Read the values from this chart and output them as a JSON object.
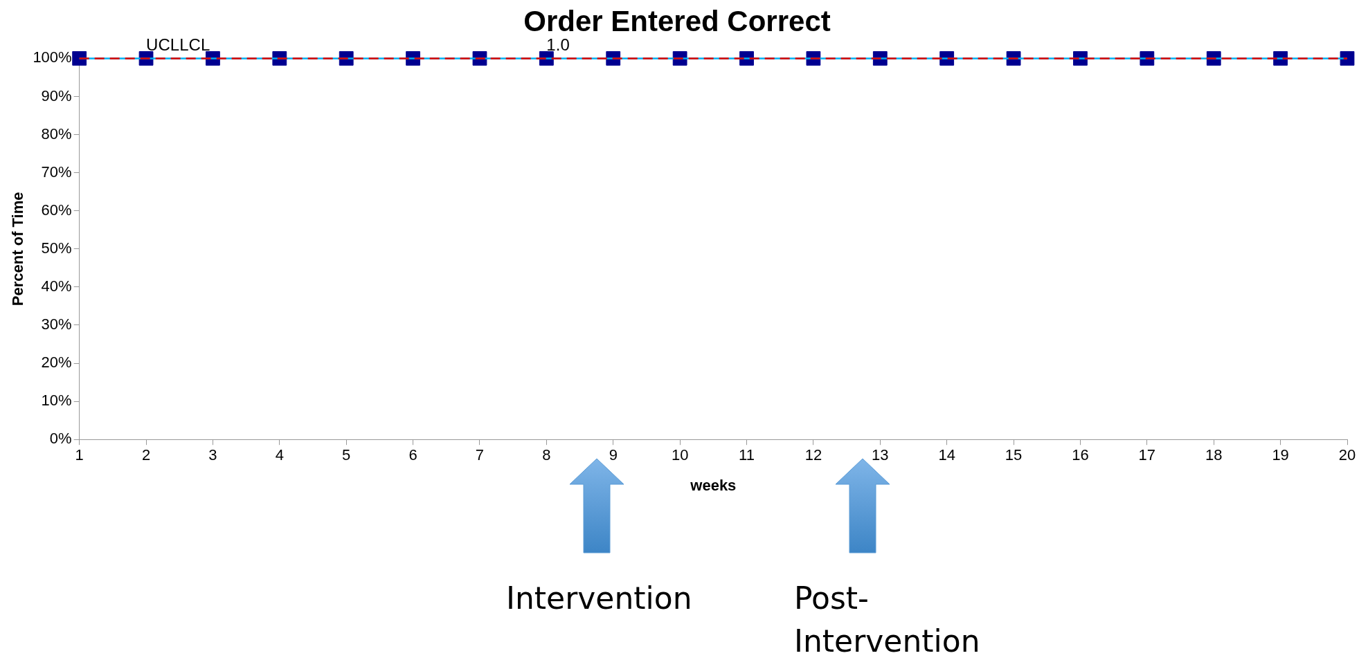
{
  "chart_data": {
    "type": "scatter",
    "title": "Order Entered Correct",
    "xlabel": "weeks",
    "ylabel": "Percent of Time",
    "x": [
      1,
      2,
      3,
      4,
      5,
      6,
      7,
      8,
      9,
      10,
      11,
      12,
      13,
      14,
      15,
      16,
      17,
      18,
      19,
      20
    ],
    "series": [
      {
        "color": "#000090",
        "values": [
          100,
          100,
          100,
          100,
          100,
          100,
          100,
          100,
          100,
          100,
          100,
          100,
          100,
          100,
          100,
          100,
          100,
          100,
          100,
          100
        ]
      }
    ],
    "marker": "square",
    "grid": false,
    "legend": false,
    "xlim": [
      1,
      20
    ],
    "xticks": [
      1,
      2,
      3,
      4,
      5,
      6,
      7,
      8,
      9,
      10,
      11,
      12,
      13,
      14,
      15,
      16,
      17,
      18,
      19,
      20
    ],
    "ylim": [
      0,
      100
    ],
    "yticks": [
      {
        "value": 0,
        "label": "0%"
      },
      {
        "value": 10,
        "label": "10%"
      },
      {
        "value": 20,
        "label": "20%"
      },
      {
        "value": 30,
        "label": "30%"
      },
      {
        "value": 40,
        "label": "40%"
      },
      {
        "value": 50,
        "label": "50%"
      },
      {
        "value": 60,
        "label": "60%"
      },
      {
        "value": 70,
        "label": "70%"
      },
      {
        "value": 80,
        "label": "80%"
      },
      {
        "value": 90,
        "label": "90%"
      },
      {
        "value": 100,
        "label": "100%"
      }
    ],
    "ref_lines": [
      {
        "axis": "y",
        "value": 100,
        "color": "#00b0f0",
        "line_style": "solid"
      },
      {
        "axis": "y",
        "value": 100,
        "color": "#e00000",
        "line_style": "dashed"
      }
    ],
    "annotations": [
      {
        "text": "UCL",
        "x": 2,
        "y": 100
      },
      {
        "text": "LCL",
        "x": 2.5,
        "y": 100
      },
      {
        "text": "1.0",
        "x": 8,
        "y": 100
      },
      "Intervention",
      "Post-Intervention"
    ]
  }
}
